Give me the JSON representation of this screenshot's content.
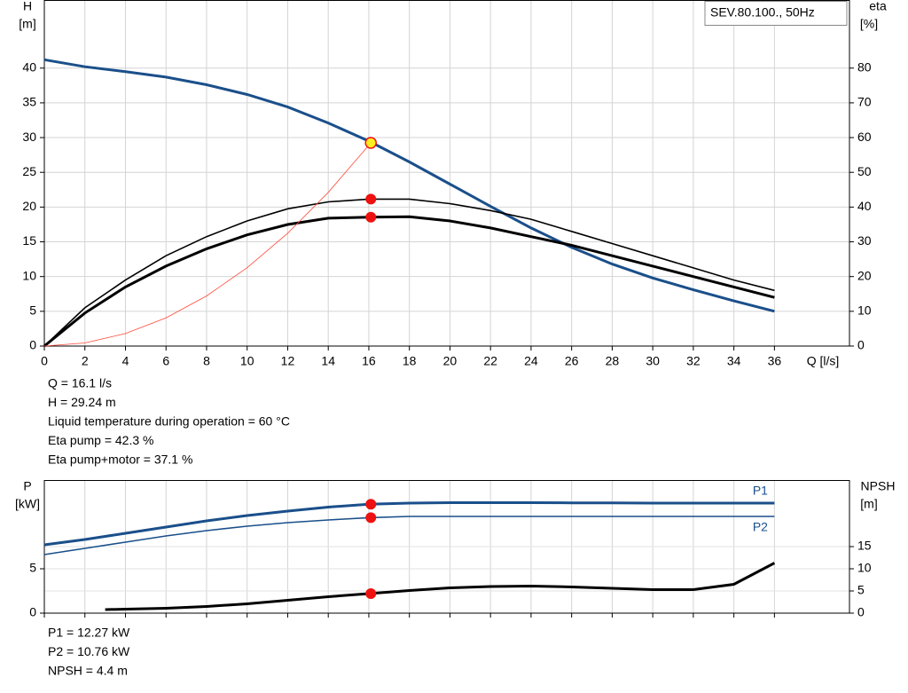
{
  "chart_data": [
    {
      "type": "line",
      "legend_box": "SEV.80.100., 50Hz",
      "ylabel": [
        "H",
        "[m]"
      ],
      "y2label": [
        "eta",
        "[%]"
      ],
      "xlabel": "Q [l/s]",
      "xlim": [
        0,
        39.7
      ],
      "xticks": [
        0,
        2,
        4,
        6,
        8,
        10,
        12,
        14,
        16,
        18,
        20,
        22,
        24,
        26,
        28,
        30,
        32,
        34,
        36
      ],
      "ylim": [
        0,
        49.8
      ],
      "yticks": [
        0,
        5,
        10,
        15,
        20,
        25,
        30,
        35,
        40
      ],
      "y2lim": [
        0,
        99.6
      ],
      "y2ticks": [
        0,
        10,
        20,
        30,
        40,
        50,
        60,
        70,
        80
      ],
      "grid": true,
      "series": [
        {
          "color": "#1a4f8a",
          "line_width": 3,
          "axis": "y",
          "x": [
            0,
            2,
            4,
            6,
            8,
            10,
            12,
            14,
            16,
            18,
            20,
            22,
            24,
            26,
            28,
            30,
            32,
            34,
            36
          ],
          "values": [
            41.2,
            40.2,
            39.5,
            38.7,
            37.6,
            36.2,
            34.4,
            32.1,
            29.5,
            26.5,
            23.3,
            20.1,
            17.0,
            14.2,
            11.8,
            9.8,
            8.1,
            6.5,
            5.0
          ]
        },
        {
          "color": "#000000",
          "line_width": 1.6,
          "axis": "y2",
          "x": [
            0,
            2,
            4,
            6,
            8,
            10,
            12,
            14,
            16,
            18,
            20,
            22,
            24,
            26,
            28,
            30,
            32,
            34,
            36
          ],
          "values": [
            0,
            11,
            19,
            26,
            31.5,
            36,
            39.5,
            41.5,
            42.3,
            42.3,
            41,
            39,
            36.5,
            33,
            29.5,
            26,
            22.5,
            19,
            16
          ]
        },
        {
          "color": "#000000",
          "line_width": 3,
          "axis": "y2",
          "x": [
            0,
            2,
            4,
            6,
            8,
            10,
            12,
            14,
            16,
            18,
            20,
            22,
            24,
            26,
            28,
            30,
            32,
            34,
            36
          ],
          "values": [
            0,
            9.5,
            17,
            23,
            28,
            32,
            35,
            36.8,
            37.1,
            37.2,
            36,
            34,
            31.5,
            29,
            26,
            23,
            20,
            17,
            14
          ]
        },
        {
          "color": "#ff4a3a",
          "line_width": 0.8,
          "axis": "y",
          "x": [
            0,
            2,
            4,
            6,
            8,
            10,
            12,
            14,
            16,
            16.1
          ],
          "values": [
            0,
            0.45,
            1.8,
            4.06,
            7.22,
            11.28,
            16.24,
            22.11,
            28.88,
            29.24
          ]
        }
      ],
      "markers": [
        {
          "x": 16.1,
          "y": 29.24,
          "axis": "y",
          "color": "#ffee22"
        },
        {
          "x": 16.1,
          "y": 42.3,
          "axis": "y2",
          "color": "#ee1111"
        },
        {
          "x": 16.1,
          "y": 37.1,
          "axis": "y2",
          "color": "#ee1111"
        }
      ],
      "notes": [
        "Q = 16.1 l/s",
        "H = 29.24 m",
        "Liquid temperature during operation = 60 °C",
        "Eta pump = 42.3 %",
        "Eta pump+motor = 37.1 %"
      ]
    },
    {
      "type": "line",
      "ylabel": [
        "P",
        "[kW]"
      ],
      "y2label": [
        "NPSH",
        "[m]"
      ],
      "xlim": [
        0,
        39.7
      ],
      "ylim": [
        0,
        15
      ],
      "yticks": [
        0,
        5
      ],
      "y2lim": [
        0,
        30
      ],
      "y2ticks": [
        0,
        5,
        10,
        15
      ],
      "grid": true,
      "series": [
        {
          "name": "P1",
          "color": "#1a4f8a",
          "line_width": 3,
          "axis": "y",
          "x": [
            0,
            2,
            4,
            6,
            8,
            10,
            12,
            14,
            16,
            18,
            20,
            22,
            24,
            26,
            28,
            30,
            32,
            34,
            36
          ],
          "values": [
            7.7,
            8.3,
            9.0,
            9.7,
            10.4,
            11.0,
            11.5,
            11.95,
            12.27,
            12.4,
            12.45,
            12.45,
            12.45,
            12.43,
            12.42,
            12.4,
            12.4,
            12.4,
            12.4
          ]
        },
        {
          "name": "P2",
          "color": "#1a4f8a",
          "line_width": 1.6,
          "axis": "y",
          "x": [
            0,
            2,
            4,
            6,
            8,
            10,
            12,
            14,
            16,
            18,
            20,
            22,
            24,
            26,
            28,
            30,
            32,
            34,
            36
          ],
          "values": [
            6.6,
            7.3,
            8.0,
            8.7,
            9.3,
            9.8,
            10.2,
            10.5,
            10.76,
            10.9,
            10.9,
            10.9,
            10.9,
            10.9,
            10.9,
            10.9,
            10.9,
            10.9,
            10.9
          ]
        },
        {
          "color": "#000000",
          "line_width": 3,
          "axis": "y2",
          "x": [
            3,
            4,
            6,
            8,
            10,
            12,
            14,
            16,
            18,
            20,
            22,
            24,
            26,
            28,
            30,
            32,
            34,
            36
          ],
          "values": [
            0.8,
            0.9,
            1.1,
            1.5,
            2.1,
            2.9,
            3.7,
            4.4,
            5.1,
            5.7,
            6.0,
            6.1,
            5.9,
            5.6,
            5.3,
            5.3,
            6.5,
            11.3
          ]
        }
      ],
      "markers": [
        {
          "x": 16.1,
          "y": 12.27,
          "axis": "y",
          "color": "#ee1111"
        },
        {
          "x": 16.1,
          "y": 10.76,
          "axis": "y",
          "color": "#ee1111"
        },
        {
          "x": 16.1,
          "y": 4.4,
          "axis": "y2",
          "color": "#ee1111"
        }
      ],
      "notes": [
        "P1 = 12.27 kW",
        "P2 = 10.76 kW",
        "NPSH = 4.4 m"
      ]
    }
  ]
}
